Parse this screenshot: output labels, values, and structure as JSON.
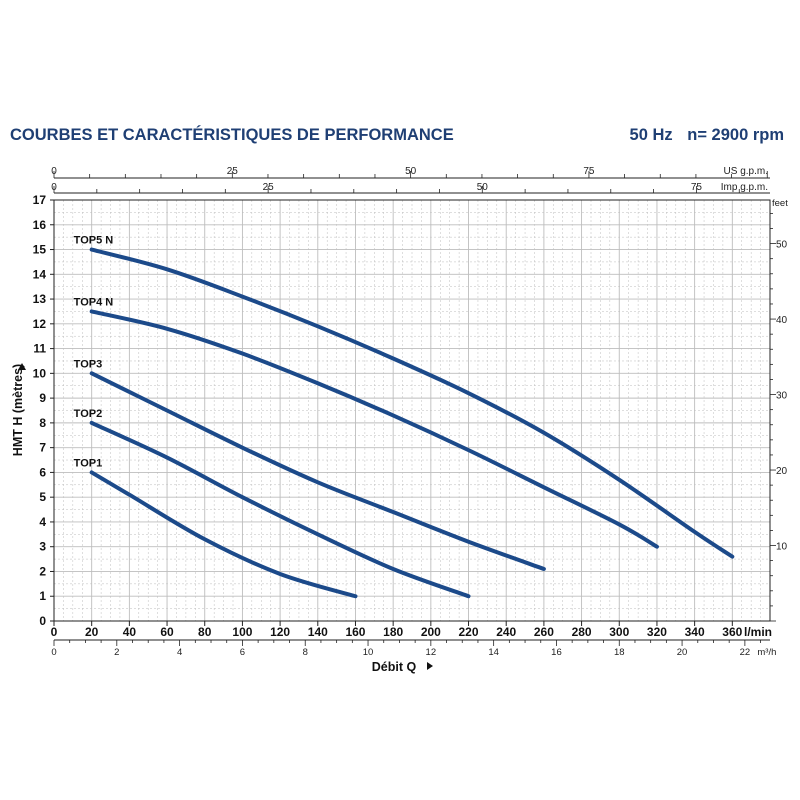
{
  "header": {
    "title": "COURBES ET CARACTÉRISTIQUES DE PERFORMANCE",
    "frequency": "50 Hz",
    "speed": "n= 2900 rpm"
  },
  "colors": {
    "title": "#1f3f74",
    "curve": "#1c4a8a",
    "grid": "#bdbdbd",
    "axis": "#222222"
  },
  "chart_data": {
    "type": "line",
    "title": "",
    "xlabel": "Débit Q",
    "ylabel": "HMT H (mètres)",
    "x_unit": "l/min",
    "y_unit": "",
    "xlim": [
      0,
      380
    ],
    "ylim": [
      0,
      17
    ],
    "x_ticks": [
      0,
      20,
      40,
      60,
      80,
      100,
      120,
      140,
      160,
      180,
      200,
      220,
      240,
      260,
      280,
      300,
      320,
      340,
      360
    ],
    "y_ticks": [
      0,
      1,
      2,
      3,
      4,
      5,
      6,
      7,
      8,
      9,
      10,
      11,
      12,
      13,
      14,
      15,
      16,
      17
    ],
    "grid": true,
    "secondary_axes": {
      "us_gpm": {
        "label": "US g.p.m.",
        "ticks": [
          0,
          25,
          50,
          75
        ]
      },
      "imp_gpm": {
        "label": "Imp g.p.m.",
        "ticks": [
          0,
          25,
          50,
          75
        ]
      },
      "feet": {
        "label": "feet",
        "ticks": [
          10,
          20,
          30,
          40,
          50
        ]
      },
      "m3h": {
        "label": "m³/h",
        "ticks": [
          0,
          2,
          4,
          6,
          8,
          10,
          12,
          14,
          16,
          18,
          20,
          22
        ]
      }
    },
    "series": [
      {
        "name": "TOP1",
        "x": [
          20,
          40,
          80,
          120,
          160
        ],
        "y": [
          6,
          5.1,
          3.3,
          1.9,
          1.0
        ]
      },
      {
        "name": "TOP2",
        "x": [
          20,
          60,
          100,
          140,
          180,
          220
        ],
        "y": [
          8,
          6.6,
          5.0,
          3.5,
          2.1,
          1.0
        ]
      },
      {
        "name": "TOP3",
        "x": [
          20,
          60,
          100,
          140,
          180,
          220,
          260
        ],
        "y": [
          10,
          8.5,
          7.0,
          5.6,
          4.4,
          3.2,
          2.1
        ]
      },
      {
        "name": "TOP4 N",
        "x": [
          20,
          60,
          100,
          140,
          180,
          220,
          260,
          300,
          320
        ],
        "y": [
          12.5,
          11.8,
          10.8,
          9.6,
          8.3,
          6.9,
          5.4,
          3.9,
          3.0
        ]
      },
      {
        "name": "TOP5 N",
        "x": [
          20,
          60,
          100,
          140,
          180,
          220,
          260,
          300,
          340,
          360
        ],
        "y": [
          15,
          14.2,
          13.1,
          11.9,
          10.6,
          9.2,
          7.6,
          5.7,
          3.6,
          2.6
        ]
      }
    ]
  }
}
